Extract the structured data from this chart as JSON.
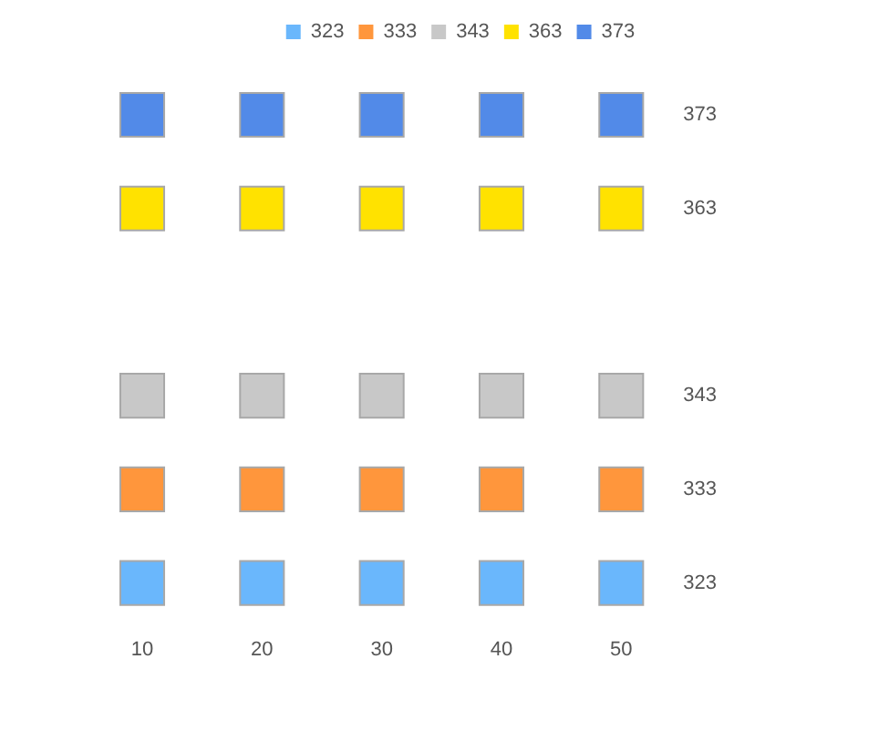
{
  "chart_data": {
    "type": "scatter",
    "x": [
      10,
      20,
      30,
      40,
      50
    ],
    "series": [
      {
        "name": "323",
        "color": "#6ab7fc",
        "values": [
          323,
          323,
          323,
          323,
          323
        ]
      },
      {
        "name": "333",
        "color": "#ff963c",
        "values": [
          333,
          333,
          333,
          333,
          333
        ]
      },
      {
        "name": "343",
        "color": "#c8c8c8",
        "values": [
          343,
          343,
          343,
          343,
          343
        ]
      },
      {
        "name": "363",
        "color": "#ffe200",
        "values": [
          363,
          363,
          363,
          363,
          363
        ]
      },
      {
        "name": "373",
        "color": "#528ae8",
        "values": [
          373,
          373,
          373,
          373,
          373
        ]
      }
    ],
    "xlim": [
      10,
      50
    ],
    "xticks": [
      10,
      20,
      30,
      40,
      50
    ],
    "ylim": [
      323,
      373
    ],
    "yticks": [
      323,
      333,
      343,
      363,
      373
    ],
    "grid": false,
    "legend": "top",
    "marker": "square"
  }
}
